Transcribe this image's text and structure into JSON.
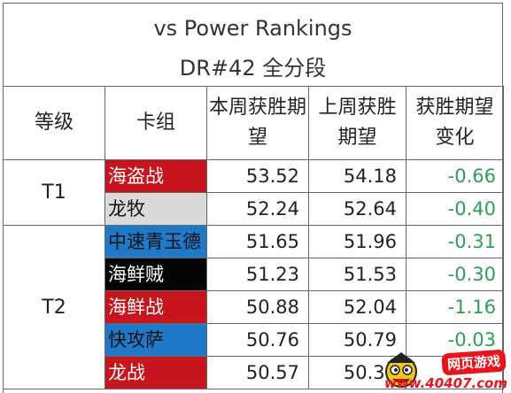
{
  "title": {
    "line1": "vs Power Rankings",
    "line2": "DR#42 全分段"
  },
  "headers": {
    "tier": "等级",
    "deck": "卡组",
    "this_week": "本周获胜期望",
    "last_week": "上周获胜期望",
    "change": "获胜期望变化"
  },
  "colors": {
    "red": "#c8141c",
    "light_gray": "#dadada",
    "blue": "#1f79c9",
    "black": "#050505",
    "positive_delta_text": "#2e9e57",
    "border": "#666666"
  },
  "tiers": [
    {
      "tier": "T1",
      "rows": [
        {
          "deck": "海盗战",
          "deck_color": "#c8141c",
          "deck_text_color": "#ffffff",
          "this_week": "53.52",
          "last_week": "54.18",
          "change": "-0.66"
        },
        {
          "deck": "龙牧",
          "deck_color": "#dadada",
          "deck_text_color": "#111111",
          "this_week": "52.24",
          "last_week": "52.64",
          "change": "-0.40"
        }
      ]
    },
    {
      "tier": "T2",
      "rows": [
        {
          "deck": "中速青玉德",
          "deck_color": "#1f79c9",
          "deck_text_color": "#111111",
          "this_week": "51.65",
          "last_week": "51.96",
          "change": "-0.31"
        },
        {
          "deck": "海鲜贼",
          "deck_color": "#050505",
          "deck_text_color": "#ffffff",
          "this_week": "51.23",
          "last_week": "51.53",
          "change": "-0.30"
        },
        {
          "deck": "海鲜战",
          "deck_color": "#c8141c",
          "deck_text_color": "#ffffff",
          "this_week": "50.88",
          "last_week": "52.04",
          "change": "-1.16"
        },
        {
          "deck": "快攻萨",
          "deck_color": "#1f79c9",
          "deck_text_color": "#111111",
          "this_week": "50.76",
          "last_week": "50.79",
          "change": "-0.03"
        },
        {
          "deck": "龙战",
          "deck_color": "#c8141c",
          "deck_text_color": "#ffffff",
          "this_week": "50.57",
          "last_week": "50.31",
          "change": ""
        }
      ]
    }
  ],
  "watermark": {
    "badge": "网页游戏",
    "url": "www.40407.com",
    "icon": "mascot-icon"
  }
}
